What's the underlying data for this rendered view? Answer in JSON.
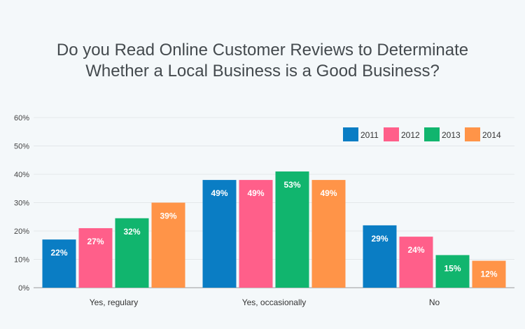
{
  "chart_data": {
    "type": "bar",
    "title_lines": [
      "Do you Read Online Customer Reviews to Determinate",
      "Whether a Local Business is a Good Business?"
    ],
    "categories": [
      "Yes, regulary",
      "Yes, occasionally",
      "No"
    ],
    "series": [
      {
        "name": "2011",
        "color": "#0a7dc4",
        "values": [
          17,
          38,
          22
        ],
        "labels": [
          "22%",
          "49%",
          "29%"
        ]
      },
      {
        "name": "2012",
        "color": "#ff5f8a",
        "values": [
          21,
          38,
          18
        ],
        "labels": [
          "27%",
          "49%",
          "24%"
        ]
      },
      {
        "name": "2013",
        "color": "#11b56e",
        "values": [
          24.5,
          41,
          11.5
        ],
        "labels": [
          "32%",
          "53%",
          "15%"
        ]
      },
      {
        "name": "2014",
        "color": "#ff9448",
        "values": [
          30,
          38,
          9.5
        ],
        "labels": [
          "39%",
          "49%",
          "12%"
        ]
      }
    ],
    "yticks": [
      "0%",
      "10%",
      "20%",
      "30%",
      "40%",
      "50%",
      "60%"
    ],
    "ylim": [
      0,
      60
    ],
    "legend_position": "top-right",
    "grid": true
  }
}
